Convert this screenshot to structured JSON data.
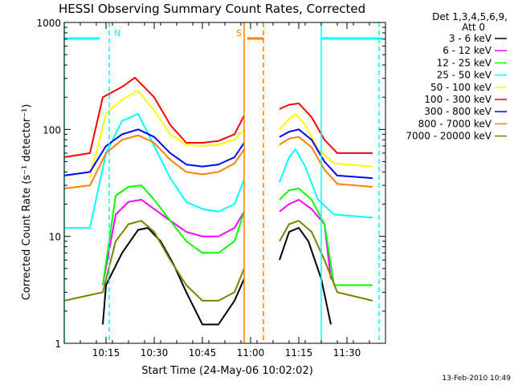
{
  "chart_data": {
    "type": "line",
    "title": "HESSI Observing Summary Count Rates, Corrected",
    "xlabel": "Start Time (24-May-06 10:02:02)",
    "ylabel": "Corrected Count Rate (s⁻¹ detector⁻¹)",
    "yscale": "log",
    "ylim": [
      1,
      1000
    ],
    "xlim": [
      "10:02",
      "11:42"
    ],
    "x_ticks": [
      "10:15",
      "10:30",
      "10:45",
      "11:00",
      "11:15",
      "11:30"
    ],
    "y_ticks": [
      "1",
      "10",
      "100",
      "1000"
    ],
    "legend_title": [
      "Det 1,3,4,5,6,9,",
      "Att 0"
    ],
    "legend_position": "right",
    "footer": "13-Feb-2010 10:49",
    "data_gap": [
      "10:58",
      "11:08"
    ],
    "series": [
      {
        "name": "3 - 6 keV",
        "color": "#000000",
        "values": [
          [
            "10:14",
            1.5
          ],
          [
            "10:15",
            3.5
          ],
          [
            "10:20",
            7
          ],
          [
            "10:25",
            11.5
          ],
          [
            "10:28",
            12
          ],
          [
            "10:32",
            9
          ],
          [
            "10:36",
            5.5
          ],
          [
            "10:40",
            3
          ],
          [
            "10:45",
            1.5
          ],
          [
            "10:50",
            1.5
          ],
          [
            "10:55",
            2.5
          ],
          [
            "10:58",
            4
          ],
          [
            "11:09",
            6
          ],
          [
            "11:12",
            11
          ],
          [
            "11:15",
            12
          ],
          [
            "11:18",
            9
          ],
          [
            "11:22",
            4
          ],
          [
            "11:25",
            1.5
          ]
        ]
      },
      {
        "name": "6 - 12 keV",
        "color": "#ff00ff",
        "values": [
          [
            "10:14",
            3.5
          ],
          [
            "10:18",
            16
          ],
          [
            "10:22",
            21
          ],
          [
            "10:26",
            22
          ],
          [
            "10:30",
            18
          ],
          [
            "10:35",
            14
          ],
          [
            "10:40",
            11
          ],
          [
            "10:45",
            10
          ],
          [
            "10:50",
            10
          ],
          [
            "10:55",
            12
          ],
          [
            "10:58",
            17
          ],
          [
            "11:09",
            17
          ],
          [
            "11:12",
            20
          ],
          [
            "11:15",
            22
          ],
          [
            "11:19",
            18
          ],
          [
            "11:23",
            13
          ],
          [
            "11:25",
            4
          ]
        ]
      },
      {
        "name": "12 - 25 keV",
        "color": "#00ff00",
        "values": [
          [
            "10:14",
            3.5
          ],
          [
            "10:18",
            24
          ],
          [
            "10:22",
            29
          ],
          [
            "10:26",
            30
          ],
          [
            "10:30",
            22
          ],
          [
            "10:35",
            14
          ],
          [
            "10:40",
            9
          ],
          [
            "10:45",
            7
          ],
          [
            "10:50",
            7
          ],
          [
            "10:55",
            9
          ],
          [
            "10:58",
            17
          ],
          [
            "11:09",
            22
          ],
          [
            "11:12",
            27
          ],
          [
            "11:15",
            28
          ],
          [
            "11:19",
            22
          ],
          [
            "11:23",
            13
          ],
          [
            "11:26",
            3.5
          ],
          [
            "11:38",
            3.5
          ]
        ]
      },
      {
        "name": "25 - 50 keV",
        "color": "#00ffff",
        "values": [
          [
            "10:02",
            12
          ],
          [
            "10:10",
            12
          ],
          [
            "10:15",
            60
          ],
          [
            "10:20",
            120
          ],
          [
            "10:25",
            140
          ],
          [
            "10:30",
            70
          ],
          [
            "10:35",
            35
          ],
          [
            "10:40",
            21
          ],
          [
            "10:45",
            18
          ],
          [
            "10:50",
            17
          ],
          [
            "10:55",
            20
          ],
          [
            "10:58",
            34
          ],
          [
            "11:09",
            32
          ],
          [
            "11:12",
            55
          ],
          [
            "11:14",
            65
          ],
          [
            "11:17",
            45
          ],
          [
            "11:21",
            22
          ],
          [
            "11:26",
            16
          ],
          [
            "11:38",
            15
          ]
        ]
      },
      {
        "name": "50 - 100 keV",
        "color": "#ffff00",
        "values": [
          [
            "10:10",
            35
          ],
          [
            "10:15",
            140
          ],
          [
            "10:20",
            190
          ],
          [
            "10:25",
            230
          ],
          [
            "10:30",
            150
          ],
          [
            "10:35",
            90
          ],
          [
            "10:40",
            72
          ],
          [
            "10:45",
            70
          ],
          [
            "10:50",
            72
          ],
          [
            "10:55",
            80
          ],
          [
            "10:58",
            100
          ],
          [
            "11:09",
            100
          ],
          [
            "11:12",
            125
          ],
          [
            "11:14",
            140
          ],
          [
            "11:17",
            110
          ],
          [
            "11:21",
            65
          ],
          [
            "11:26",
            48
          ],
          [
            "11:38",
            45
          ]
        ]
      },
      {
        "name": "100 - 300 keV",
        "color": "#ff0000",
        "values": [
          [
            "10:02",
            55
          ],
          [
            "10:10",
            60
          ],
          [
            "10:14",
            200
          ],
          [
            "10:20",
            250
          ],
          [
            "10:24",
            305
          ],
          [
            "10:30",
            200
          ],
          [
            "10:35",
            110
          ],
          [
            "10:40",
            75
          ],
          [
            "10:45",
            75
          ],
          [
            "10:50",
            78
          ],
          [
            "10:55",
            90
          ],
          [
            "10:58",
            135
          ],
          [
            "11:09",
            155
          ],
          [
            "11:12",
            170
          ],
          [
            "11:15",
            175
          ],
          [
            "11:19",
            130
          ],
          [
            "11:23",
            80
          ],
          [
            "11:27",
            60
          ],
          [
            "11:38",
            60
          ]
        ]
      },
      {
        "name": "300 - 800 keV",
        "color": "#0000ff",
        "values": [
          [
            "10:02",
            37
          ],
          [
            "10:10",
            40
          ],
          [
            "10:15",
            70
          ],
          [
            "10:20",
            90
          ],
          [
            "10:25",
            100
          ],
          [
            "10:30",
            85
          ],
          [
            "10:35",
            60
          ],
          [
            "10:40",
            47
          ],
          [
            "10:45",
            45
          ],
          [
            "10:50",
            47
          ],
          [
            "10:55",
            55
          ],
          [
            "10:58",
            75
          ],
          [
            "11:09",
            85
          ],
          [
            "11:12",
            95
          ],
          [
            "11:15",
            100
          ],
          [
            "11:19",
            80
          ],
          [
            "11:23",
            50
          ],
          [
            "11:27",
            37
          ],
          [
            "11:38",
            35
          ]
        ]
      },
      {
        "name": "800 - 7000 keV",
        "color": "#ff8000",
        "values": [
          [
            "10:02",
            28
          ],
          [
            "10:10",
            30
          ],
          [
            "10:15",
            60
          ],
          [
            "10:20",
            80
          ],
          [
            "10:25",
            88
          ],
          [
            "10:30",
            75
          ],
          [
            "10:35",
            52
          ],
          [
            "10:40",
            40
          ],
          [
            "10:45",
            38
          ],
          [
            "10:50",
            40
          ],
          [
            "10:55",
            48
          ],
          [
            "10:58",
            65
          ],
          [
            "11:09",
            72
          ],
          [
            "11:12",
            82
          ],
          [
            "11:15",
            85
          ],
          [
            "11:19",
            68
          ],
          [
            "11:23",
            42
          ],
          [
            "11:27",
            31
          ],
          [
            "11:38",
            29
          ]
        ]
      },
      {
        "name": "7000 - 20000 keV",
        "color": "#808000",
        "values": [
          [
            "10:02",
            2.5
          ],
          [
            "10:14",
            3
          ],
          [
            "10:18",
            9
          ],
          [
            "10:22",
            13
          ],
          [
            "10:26",
            14
          ],
          [
            "10:30",
            11
          ],
          [
            "10:35",
            6
          ],
          [
            "10:40",
            3.5
          ],
          [
            "10:45",
            2.5
          ],
          [
            "10:50",
            2.5
          ],
          [
            "10:55",
            3
          ],
          [
            "10:58",
            5
          ],
          [
            "11:09",
            9
          ],
          [
            "11:12",
            13
          ],
          [
            "11:15",
            14
          ],
          [
            "11:19",
            11
          ],
          [
            "11:23",
            6
          ],
          [
            "11:27",
            3
          ],
          [
            "11:38",
            2.5
          ]
        ]
      }
    ],
    "flag_lines": [
      {
        "label": "",
        "color": "#00ffff",
        "style": "solid",
        "x": "10:02"
      },
      {
        "label": "",
        "color": "#00ffff",
        "style": "dashed",
        "x": "10:16"
      },
      {
        "label": "",
        "color": "#00ffff",
        "style": "solid",
        "x": "11:22"
      },
      {
        "label": "",
        "color": "#00ffff",
        "style": "dashed",
        "x": "11:40"
      },
      {
        "label": "",
        "color": "#ff8000",
        "style": "solid",
        "x": "10:58"
      },
      {
        "label": "",
        "color": "#ff8000",
        "style": "dashed",
        "x": "11:04"
      }
    ],
    "flag_bars": [
      {
        "label": "N",
        "color": "#00ffff",
        "from": "10:02",
        "to": "10:13"
      },
      {
        "label": "",
        "color": "#00ffff",
        "from": "11:22",
        "to": "11:41"
      },
      {
        "label": "S",
        "color": "#ff8000",
        "from": "10:59",
        "to": "11:04"
      }
    ]
  }
}
